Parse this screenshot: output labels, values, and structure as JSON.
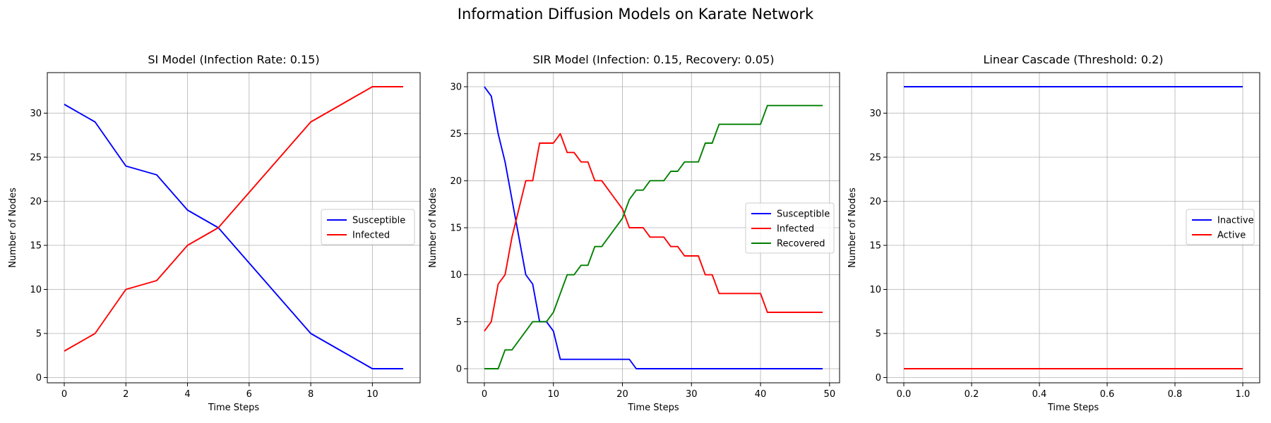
{
  "figure": {
    "title": "Information Diffusion Models on Karate Network"
  },
  "chart_data": [
    {
      "type": "line",
      "title": "SI Model (Infection Rate: 0.15)",
      "xlabel": "Time Steps",
      "ylabel": "Number of Nodes",
      "xlim": [
        -0.55,
        11.55
      ],
      "ylim": [
        -0.6,
        34.6
      ],
      "xticks": [
        0,
        2,
        4,
        6,
        8,
        10
      ],
      "yticks": [
        0,
        5,
        10,
        15,
        20,
        25,
        30
      ],
      "grid": true,
      "legend": "center-right",
      "series": [
        {
          "name": "Susceptible",
          "color": "#0000ff",
          "x": [
            0,
            1,
            2,
            3,
            4,
            5,
            6,
            7,
            8,
            9,
            10,
            11
          ],
          "y": [
            31,
            29,
            24,
            23,
            19,
            17,
            13,
            9,
            5,
            3,
            1,
            1
          ]
        },
        {
          "name": "Infected",
          "color": "#ff0000",
          "x": [
            0,
            1,
            2,
            3,
            4,
            5,
            6,
            7,
            8,
            9,
            10,
            11
          ],
          "y": [
            3,
            5,
            10,
            11,
            15,
            17,
            21,
            25,
            29,
            31,
            33,
            33
          ]
        }
      ]
    },
    {
      "type": "line",
      "title": "SIR Model (Infection: 0.15, Recovery: 0.05)",
      "xlabel": "Time Steps",
      "ylabel": "Number of Nodes",
      "xlim": [
        -2.45,
        51.45
      ],
      "ylim": [
        -1.5,
        31.5
      ],
      "xticks": [
        0,
        10,
        20,
        30,
        40,
        50
      ],
      "yticks": [
        0,
        5,
        10,
        15,
        20,
        25,
        30
      ],
      "grid": true,
      "legend": "center-right",
      "series": [
        {
          "name": "Susceptible",
          "color": "#0000ff",
          "x": [
            0,
            1,
            2,
            3,
            4,
            5,
            6,
            7,
            8,
            9,
            10,
            11,
            12,
            13,
            14,
            15,
            16,
            17,
            18,
            19,
            20,
            21,
            22,
            23,
            24,
            25,
            26,
            27,
            28,
            29,
            30,
            31,
            32,
            33,
            34,
            35,
            36,
            37,
            38,
            39,
            40,
            41,
            42,
            43,
            44,
            45,
            46,
            47,
            48,
            49
          ],
          "y": [
            30,
            29,
            25,
            22,
            18,
            14,
            10,
            9,
            5,
            5,
            4,
            1,
            1,
            1,
            1,
            1,
            1,
            1,
            1,
            1,
            1,
            1,
            0,
            0,
            0,
            0,
            0,
            0,
            0,
            0,
            0,
            0,
            0,
            0,
            0,
            0,
            0,
            0,
            0,
            0,
            0,
            0,
            0,
            0,
            0,
            0,
            0,
            0,
            0,
            0
          ]
        },
        {
          "name": "Infected",
          "color": "#ff0000",
          "x": [
            0,
            1,
            2,
            3,
            4,
            5,
            6,
            7,
            8,
            9,
            10,
            11,
            12,
            13,
            14,
            15,
            16,
            17,
            18,
            19,
            20,
            21,
            22,
            23,
            24,
            25,
            26,
            27,
            28,
            29,
            30,
            31,
            32,
            33,
            34,
            35,
            36,
            37,
            38,
            39,
            40,
            41,
            42,
            43,
            44,
            45,
            46,
            47,
            48,
            49
          ],
          "y": [
            4,
            5,
            9,
            10,
            14,
            17,
            20,
            20,
            24,
            24,
            24,
            25,
            23,
            23,
            22,
            22,
            20,
            20,
            19,
            18,
            17,
            15,
            15,
            15,
            14,
            14,
            14,
            13,
            13,
            12,
            12,
            12,
            10,
            10,
            8,
            8,
            8,
            8,
            8,
            8,
            8,
            6,
            6,
            6,
            6,
            6,
            6,
            6,
            6,
            6
          ]
        },
        {
          "name": "Recovered",
          "color": "#008000",
          "x": [
            0,
            1,
            2,
            3,
            4,
            5,
            6,
            7,
            8,
            9,
            10,
            11,
            12,
            13,
            14,
            15,
            16,
            17,
            18,
            19,
            20,
            21,
            22,
            23,
            24,
            25,
            26,
            27,
            28,
            29,
            30,
            31,
            32,
            33,
            34,
            35,
            36,
            37,
            38,
            39,
            40,
            41,
            42,
            43,
            44,
            45,
            46,
            47,
            48,
            49
          ],
          "y": [
            0,
            0,
            0,
            2,
            2,
            3,
            4,
            5,
            5,
            5,
            6,
            8,
            10,
            10,
            11,
            11,
            13,
            13,
            14,
            15,
            16,
            18,
            19,
            19,
            20,
            20,
            20,
            21,
            21,
            22,
            22,
            22,
            24,
            24,
            26,
            26,
            26,
            26,
            26,
            26,
            26,
            28,
            28,
            28,
            28,
            28,
            28,
            28,
            28,
            28
          ]
        }
      ]
    },
    {
      "type": "line",
      "title": "Linear Cascade (Threshold: 0.2)",
      "xlabel": "Time Steps",
      "ylabel": "Number of Nodes",
      "xlim": [
        -0.05,
        1.05
      ],
      "ylim": [
        -0.6,
        34.6
      ],
      "xticks": [
        0.0,
        0.2,
        0.4,
        0.6,
        0.8,
        1.0
      ],
      "xtick_labels": [
        "0.0",
        "0.2",
        "0.4",
        "0.6",
        "0.8",
        "1.0"
      ],
      "yticks": [
        0,
        5,
        10,
        15,
        20,
        25,
        30
      ],
      "grid": true,
      "legend": "center-right",
      "series": [
        {
          "name": "Inactive",
          "color": "#0000ff",
          "x": [
            0,
            1
          ],
          "y": [
            33,
            33
          ]
        },
        {
          "name": "Active",
          "color": "#ff0000",
          "x": [
            0,
            1
          ],
          "y": [
            1,
            1
          ]
        }
      ]
    }
  ]
}
